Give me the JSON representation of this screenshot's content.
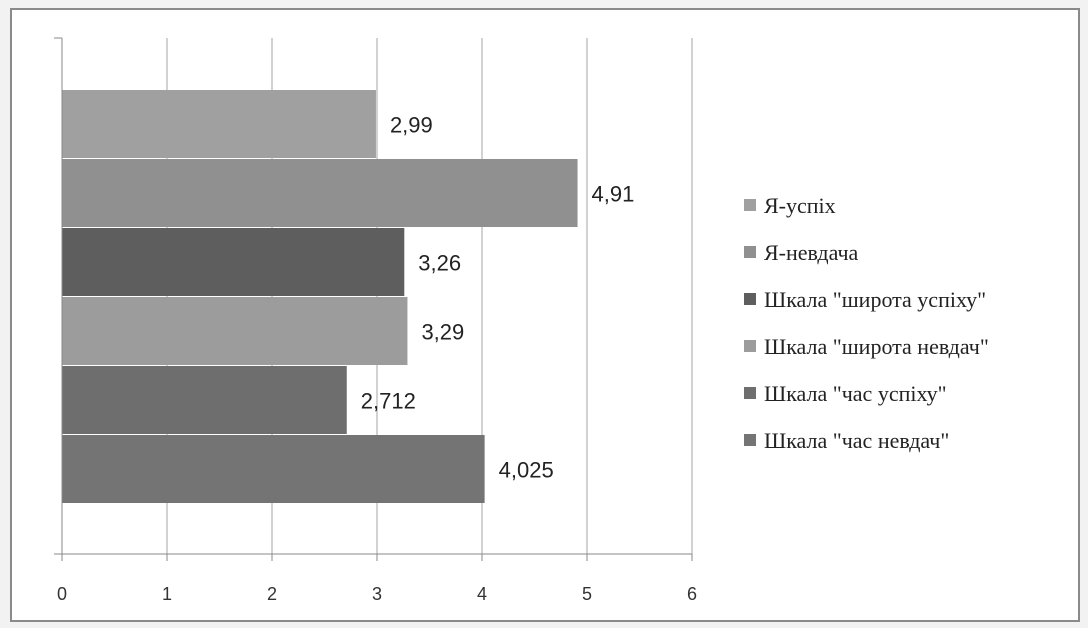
{
  "chart_data": {
    "type": "bar",
    "orientation": "horizontal",
    "title": "",
    "xlabel": "",
    "ylabel": "",
    "xlim": [
      0,
      6
    ],
    "x_ticks": [
      "0",
      "1",
      "2",
      "3",
      "4",
      "5",
      "6"
    ],
    "grid": "vertical",
    "legend_position": "right",
    "series": [
      {
        "name": "Я-успіх",
        "value": 2.99,
        "label": "2,99",
        "color": "#a0a0a0"
      },
      {
        "name": "Я-невдача",
        "value": 4.91,
        "label": "4,91",
        "color": "#909090"
      },
      {
        "name": "Шкала \"широта успіху\"",
        "value": 3.26,
        "label": "3,26",
        "color": "#5e5e5e"
      },
      {
        "name": "Шкала \"широта невдач\"",
        "value": 3.29,
        "label": "3,29",
        "color": "#9c9c9c"
      },
      {
        "name": "Шкала \"час успіху\"",
        "value": 2.712,
        "label": "2,712",
        "color": "#6e6e6e"
      },
      {
        "name": "Шкала \"час невдач\"",
        "value": 4.025,
        "label": "4,025",
        "color": "#747474"
      }
    ]
  }
}
